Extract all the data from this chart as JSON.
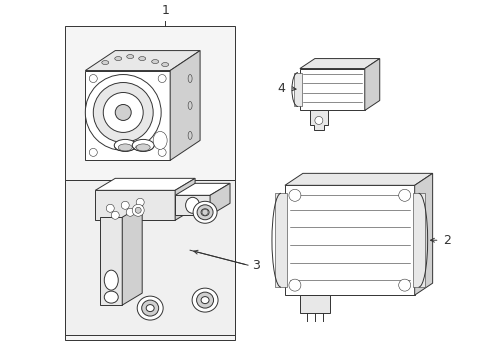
{
  "bg_color": "#ffffff",
  "line_color": "#333333",
  "box_fill": "#f0f0f0",
  "figsize": [
    4.89,
    3.6
  ],
  "dpi": 100,
  "lw_main": 0.7,
  "lw_thin": 0.4
}
